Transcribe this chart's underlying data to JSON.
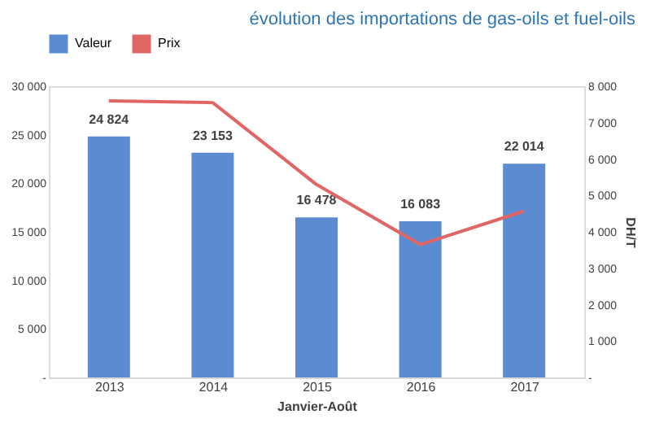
{
  "chart_data": {
    "type": "bar",
    "title": "évolution des importations de gas-oils et fuel-oils",
    "xlabel": "Janvier-Août",
    "y2label": "DH/T",
    "categories": [
      "2013",
      "2014",
      "2015",
      "2016",
      "2017"
    ],
    "series": [
      {
        "name": "Valeur",
        "color": "#5b8bd0",
        "values": [
          24824,
          23153,
          16478,
          16083,
          22014
        ],
        "value_labels": [
          "24 824",
          "23 153",
          "16 478",
          "16 083",
          "22 014"
        ]
      },
      {
        "name": "Prix",
        "type": "line",
        "axis": "y2",
        "color": "#e06666",
        "values": [
          7600,
          7550,
          5300,
          3650,
          4570
        ]
      }
    ],
    "ylim": [
      0,
      30000
    ],
    "yticks": [
      {
        "value": 0,
        "label": "-"
      },
      {
        "value": 5000,
        "label": "5 000"
      },
      {
        "value": 10000,
        "label": "10 000"
      },
      {
        "value": 15000,
        "label": "15 000"
      },
      {
        "value": 20000,
        "label": "20 000"
      },
      {
        "value": 25000,
        "label": "25 000"
      },
      {
        "value": 30000,
        "label": "30 000"
      }
    ],
    "y2lim": [
      0,
      8000
    ],
    "y2ticks": [
      {
        "value": 0,
        "label": "-"
      },
      {
        "value": 1000,
        "label": "1 000"
      },
      {
        "value": 2000,
        "label": "2 000"
      },
      {
        "value": 3000,
        "label": "3 000"
      },
      {
        "value": 4000,
        "label": "4 000"
      },
      {
        "value": 5000,
        "label": "5 000"
      },
      {
        "value": 6000,
        "label": "6 000"
      },
      {
        "value": 7000,
        "label": "7 000"
      },
      {
        "value": 8000,
        "label": "8 000"
      }
    ],
    "grid": false,
    "legend": "top",
    "marker": "none",
    "line_style": "solid"
  }
}
